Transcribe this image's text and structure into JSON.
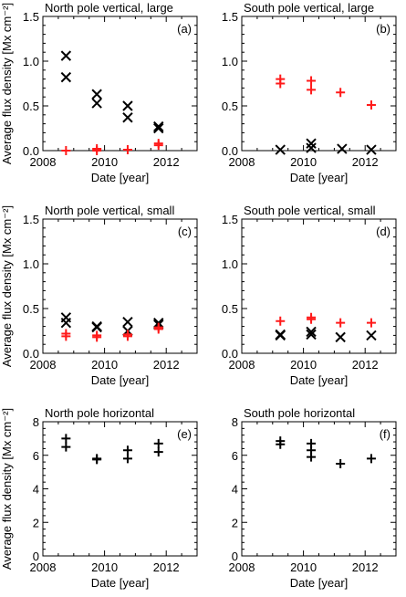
{
  "colors": {
    "red": "#ff1a1a",
    "black": "#000000"
  },
  "chart_data": [
    {
      "id": "a",
      "type": "scatter",
      "title": "North pole  vertical, large",
      "letter": "(a)",
      "xlabel": "Date [year]",
      "ylabel": "Average flux density [Mx cm⁻²]",
      "xlim": [
        2008,
        2013
      ],
      "ylim": [
        0,
        1.5
      ],
      "xticks": [
        2008,
        2010,
        2012
      ],
      "yticks": [
        0,
        0.5,
        1,
        1.5
      ],
      "yticklabels": [
        "0.0",
        "0.5",
        "1.0",
        "1.5"
      ],
      "series": [
        {
          "marker": "x",
          "color": "#000000",
          "points": [
            [
              2008.75,
              1.06
            ],
            [
              2008.75,
              0.82
            ],
            [
              2009.75,
              0.63
            ],
            [
              2009.75,
              0.53
            ],
            [
              2010.75,
              0.5
            ],
            [
              2010.75,
              0.37
            ],
            [
              2011.75,
              0.27
            ],
            [
              2011.75,
              0.25
            ]
          ]
        },
        {
          "marker": "+",
          "color": "#ff1a1a",
          "points": [
            [
              2008.75,
              0.0
            ],
            [
              2009.75,
              0.02
            ],
            [
              2009.75,
              0.0
            ],
            [
              2010.75,
              0.01
            ],
            [
              2011.75,
              0.08
            ],
            [
              2011.75,
              0.06
            ]
          ]
        }
      ]
    },
    {
      "id": "b",
      "type": "scatter",
      "title": "South pole  vertical, large",
      "letter": "(b)",
      "xlabel": "Date [year]",
      "ylabel": "",
      "xlim": [
        2008,
        2013
      ],
      "ylim": [
        0,
        1.5
      ],
      "xticks": [
        2008,
        2010,
        2012
      ],
      "yticks": [
        0,
        0.5,
        1,
        1.5
      ],
      "yticklabels": [
        "0.0",
        "0.5",
        "1.0",
        "1.5"
      ],
      "series": [
        {
          "marker": "x",
          "color": "#000000",
          "points": [
            [
              2009.25,
              0.01
            ],
            [
              2010.25,
              0.08
            ],
            [
              2010.25,
              0.03
            ],
            [
              2011.25,
              0.02
            ],
            [
              2012.2,
              0.01
            ]
          ]
        },
        {
          "marker": "+",
          "color": "#ff1a1a",
          "points": [
            [
              2009.25,
              0.8
            ],
            [
              2009.25,
              0.75
            ],
            [
              2010.25,
              0.78
            ],
            [
              2010.25,
              0.68
            ],
            [
              2011.2,
              0.65
            ],
            [
              2012.2,
              0.51
            ]
          ]
        }
      ]
    },
    {
      "id": "c",
      "type": "scatter",
      "title": "North pole  vertical, small",
      "letter": "(c)",
      "xlabel": "Date [year]",
      "ylabel": "Average flux density [Mx cm⁻²]",
      "xlim": [
        2008,
        2013
      ],
      "ylim": [
        0,
        1.5
      ],
      "xticks": [
        2008,
        2010,
        2012
      ],
      "yticks": [
        0,
        0.5,
        1,
        1.5
      ],
      "yticklabels": [
        "0.0",
        "0.5",
        "1.0",
        "1.5"
      ],
      "series": [
        {
          "marker": "x",
          "color": "#000000",
          "points": [
            [
              2008.75,
              0.4
            ],
            [
              2008.75,
              0.34
            ],
            [
              2009.75,
              0.3
            ],
            [
              2009.75,
              0.29
            ],
            [
              2010.75,
              0.35
            ],
            [
              2010.75,
              0.25
            ],
            [
              2011.75,
              0.34
            ],
            [
              2011.75,
              0.32
            ]
          ]
        },
        {
          "marker": "+",
          "color": "#ff1a1a",
          "points": [
            [
              2008.75,
              0.22
            ],
            [
              2008.75,
              0.19
            ],
            [
              2009.75,
              0.2
            ],
            [
              2009.75,
              0.18
            ],
            [
              2010.75,
              0.21
            ],
            [
              2010.75,
              0.19
            ],
            [
              2011.75,
              0.29
            ],
            [
              2011.75,
              0.27
            ]
          ]
        }
      ]
    },
    {
      "id": "d",
      "type": "scatter",
      "title": "South pole  vertical, small",
      "letter": "(d)",
      "xlabel": "Date [year]",
      "ylabel": "",
      "xlim": [
        2008,
        2013
      ],
      "ylim": [
        0,
        1.5
      ],
      "xticks": [
        2008,
        2010,
        2012
      ],
      "yticks": [
        0,
        0.5,
        1,
        1.5
      ],
      "yticklabels": [
        "0.0",
        "0.5",
        "1.0",
        "1.5"
      ],
      "series": [
        {
          "marker": "x",
          "color": "#000000",
          "points": [
            [
              2009.25,
              0.21
            ],
            [
              2009.25,
              0.2
            ],
            [
              2010.25,
              0.24
            ],
            [
              2010.25,
              0.21
            ],
            [
              2011.2,
              0.18
            ],
            [
              2012.2,
              0.2
            ]
          ]
        },
        {
          "marker": "+",
          "color": "#ff1a1a",
          "points": [
            [
              2009.25,
              0.36
            ],
            [
              2010.25,
              0.4
            ],
            [
              2010.25,
              0.38
            ],
            [
              2011.2,
              0.34
            ],
            [
              2012.2,
              0.34
            ]
          ]
        }
      ]
    },
    {
      "id": "e",
      "type": "scatter",
      "title": "North pole  horizontal",
      "letter": "(e)",
      "xlabel": "Date [year]",
      "ylabel": "Average flux density [Mx cm⁻²]",
      "xlim": [
        2008,
        2013
      ],
      "ylim": [
        0,
        8
      ],
      "xticks": [
        2008,
        2010,
        2012
      ],
      "yticks": [
        0,
        2,
        4,
        6,
        8
      ],
      "yticklabels": [
        "0",
        "2",
        "4",
        "6",
        "8"
      ],
      "series": [
        {
          "marker": "+",
          "color": "#000000",
          "points": [
            [
              2008.75,
              7.0
            ],
            [
              2008.75,
              6.5
            ],
            [
              2009.75,
              5.8
            ],
            [
              2009.75,
              5.75
            ],
            [
              2010.75,
              6.3
            ],
            [
              2010.75,
              5.8
            ],
            [
              2011.75,
              6.7
            ],
            [
              2011.75,
              6.2
            ]
          ]
        }
      ]
    },
    {
      "id": "f",
      "type": "scatter",
      "title": "South pole  horizontal",
      "letter": "(f)",
      "xlabel": "Date [year]",
      "ylabel": "",
      "xlim": [
        2008,
        2013
      ],
      "ylim": [
        0,
        8
      ],
      "xticks": [
        2008,
        2010,
        2012
      ],
      "yticks": [
        0,
        2,
        4,
        6,
        8
      ],
      "yticklabels": [
        "0",
        "2",
        "4",
        "6",
        "8"
      ],
      "series": [
        {
          "marker": "+",
          "color": "#000000",
          "points": [
            [
              2009.25,
              6.85
            ],
            [
              2009.25,
              6.65
            ],
            [
              2010.25,
              6.7
            ],
            [
              2010.25,
              6.3
            ],
            [
              2010.25,
              5.9
            ],
            [
              2011.2,
              5.5
            ],
            [
              2012.2,
              5.8
            ]
          ]
        }
      ]
    }
  ]
}
